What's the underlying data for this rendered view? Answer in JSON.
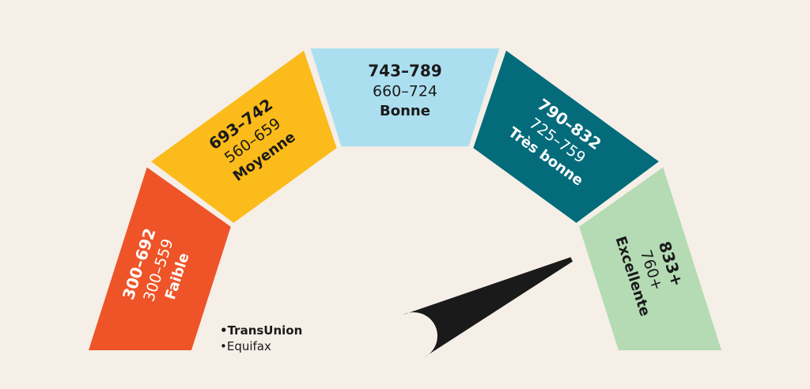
{
  "segments": [
    {
      "transunion": "300–692",
      "equifax": "300–559",
      "label": "Faible",
      "color": "#ee5428",
      "text_color": "#ffffff"
    },
    {
      "transunion": "693–742",
      "equifax": "560–659",
      "label": "Moyenne",
      "color": "#fbbb1a",
      "text_color": "#1a1a1a"
    },
    {
      "transunion": "743–789",
      "equifax": "660–724",
      "label": "Bonne",
      "color": "#abdff0",
      "text_color": "#1a1a1a"
    },
    {
      "transunion": "790–832",
      "equifax": "725–759",
      "label": "Très bonne",
      "color": "#046b7b",
      "text_color": "#ffffff"
    },
    {
      "transunion": "833+",
      "equifax": "760+",
      "label": "Excellente",
      "color": "#b4dbb3",
      "text_color": "#1a1a1a"
    }
  ],
  "legend": {
    "transunion": "•TransUnion",
    "equifax": "•Equifax"
  },
  "needle": {
    "color": "#1a1a1a",
    "segment_index": 4
  }
}
